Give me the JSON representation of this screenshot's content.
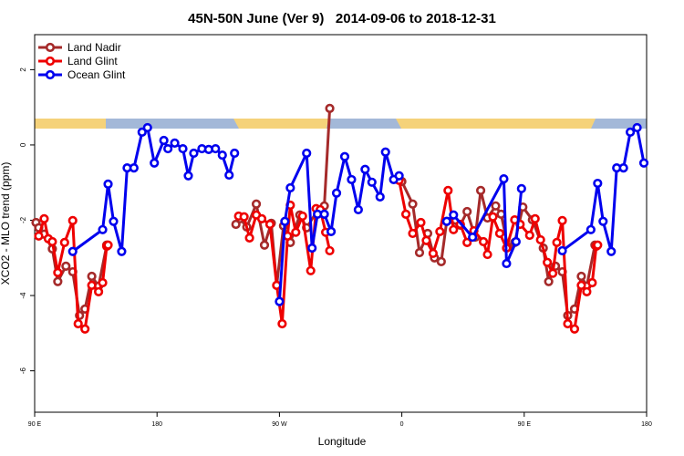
{
  "chart_data": {
    "type": "line",
    "title": "45N-50N June (Ver 9)   2014-09-06 to 2018-12-31",
    "x_label": "Longitude",
    "y_label": "XCO2 - MLO trend (ppm)",
    "xlim": [
      90,
      540
    ],
    "ylim": [
      -7.1,
      2.93
    ],
    "xticks": [
      {
        "value": 90,
        "label": "90 E"
      },
      {
        "value": 180,
        "label": "180"
      },
      {
        "value": 270,
        "label": "90 W"
      },
      {
        "value": 360,
        "label": "0"
      },
      {
        "value": 450,
        "label": "90 E"
      },
      {
        "value": 540,
        "label": "180"
      }
    ],
    "yticks": [
      -6,
      -4,
      -2,
      0,
      2
    ],
    "legend": "top-left",
    "series": [
      {
        "name": "Land Nadir",
        "color": "#a52a2a",
        "x": [
          91,
          93,
          97,
          103,
          107,
          113,
          118,
          123,
          127,
          132,
          137,
          143,
          null,
          238,
          241,
          246,
          253,
          259,
          264,
          268,
          273,
          278,
          285,
          290,
          298,
          303,
          307,
          null,
          360,
          368,
          373,
          379,
          384,
          389,
          393,
          403,
          408,
          414,
          418,
          423,
          429,
          433,
          438,
          443,
          449,
          456,
          464,
          468,
          473,
          478,
          482,
          487,
          492,
          496,
          502
        ],
        "values": [
          -2.06,
          -2.2,
          -2.37,
          -2.76,
          -3.63,
          -3.22,
          -3.37,
          -4.53,
          -4.36,
          -3.49,
          -3.75,
          -2.66,
          null,
          -2.11,
          -1.96,
          -2.18,
          -1.57,
          -2.66,
          -2.08,
          -3.73,
          -2.15,
          -2.59,
          -1.86,
          -2.2,
          -1.74,
          -1.62,
          0.97,
          null,
          -0.97,
          -1.57,
          -2.86,
          -2.35,
          -3.0,
          -3.1,
          -2.03,
          -2.13,
          -1.77,
          -2.45,
          -1.21,
          -1.94,
          -1.62,
          -1.84,
          -2.71,
          -2.59,
          -1.65,
          -1.99,
          -2.74,
          -3.63,
          -3.22,
          -3.37,
          -4.53,
          -4.36,
          -3.49,
          -3.75,
          -2.66
        ]
      },
      {
        "name": "Land Glint",
        "color": "#ee0000",
        "x": [
          93,
          97,
          100,
          103,
          107,
          112,
          118,
          122,
          127,
          132,
          137,
          140,
          143,
          144,
          null,
          240,
          244,
          248,
          253,
          257,
          263,
          268,
          272,
          276,
          278,
          282,
          287,
          293,
          297,
          300,
          304,
          307,
          null,
          358,
          363,
          368,
          374,
          378,
          383,
          388,
          394,
          398,
          403,
          408,
          413,
          420,
          423,
          427,
          432,
          437,
          443,
          447,
          454,
          458,
          462,
          467,
          471,
          474,
          478,
          482,
          487,
          492,
          496,
          500,
          503,
          504
        ],
        "values": [
          -2.42,
          -1.96,
          -2.49,
          -2.57,
          -3.39,
          -2.59,
          -2.01,
          -4.75,
          -4.89,
          -3.73,
          -3.9,
          -3.66,
          -2.69,
          -2.66,
          null,
          -1.89,
          -1.91,
          -2.47,
          -1.86,
          -1.96,
          -2.11,
          -3.73,
          -4.75,
          -2.42,
          -1.6,
          -2.32,
          -1.89,
          -3.34,
          -1.69,
          -1.72,
          -2.32,
          -2.81,
          null,
          -0.94,
          -1.84,
          -2.35,
          -2.06,
          -2.54,
          -2.88,
          -2.3,
          -1.21,
          -2.25,
          -2.11,
          -2.59,
          -2.28,
          -2.57,
          -2.91,
          -1.91,
          -2.35,
          -2.74,
          -1.99,
          -2.11,
          -2.4,
          -1.96,
          -2.52,
          -3.12,
          -3.41,
          -2.59,
          -2.01,
          -4.75,
          -4.89,
          -3.73,
          -3.9,
          -3.66,
          -2.69,
          -2.66
        ]
      },
      {
        "name": "Ocean Glint",
        "color": "#0000ee",
        "x": [
          118,
          140,
          144,
          148,
          154,
          158,
          163,
          169,
          173,
          178,
          185,
          188,
          193,
          199,
          203,
          207,
          213,
          218,
          223,
          228,
          233,
          237,
          null,
          270,
          274,
          278,
          290,
          294,
          298,
          303,
          308,
          312,
          318,
          323,
          328,
          333,
          338,
          344,
          348,
          354,
          358,
          null,
          393,
          398,
          412,
          435,
          437,
          444,
          448,
          null,
          478,
          499,
          504,
          508,
          514,
          518,
          523,
          528,
          533,
          538
        ],
        "values": [
          -2.83,
          -2.25,
          -1.04,
          -2.03,
          -2.83,
          -0.61,
          -0.61,
          0.34,
          0.46,
          -0.48,
          0.12,
          -0.1,
          0.05,
          -0.1,
          -0.82,
          -0.22,
          -0.1,
          -0.12,
          -0.1,
          -0.27,
          -0.8,
          -0.22,
          null,
          -4.16,
          -2.03,
          -1.14,
          -0.22,
          -2.74,
          -1.84,
          -1.84,
          -2.3,
          -1.28,
          -0.31,
          -0.92,
          -1.72,
          -0.65,
          -0.99,
          -1.38,
          -0.19,
          -0.92,
          -0.82,
          null,
          -2.03,
          -1.86,
          -2.45,
          -0.9,
          -3.15,
          -2.57,
          -1.16,
          null,
          -2.81,
          -2.25,
          -1.02,
          -2.03,
          -2.83,
          -0.61,
          -0.61,
          0.34,
          0.46,
          -0.48
        ]
      }
    ]
  }
}
